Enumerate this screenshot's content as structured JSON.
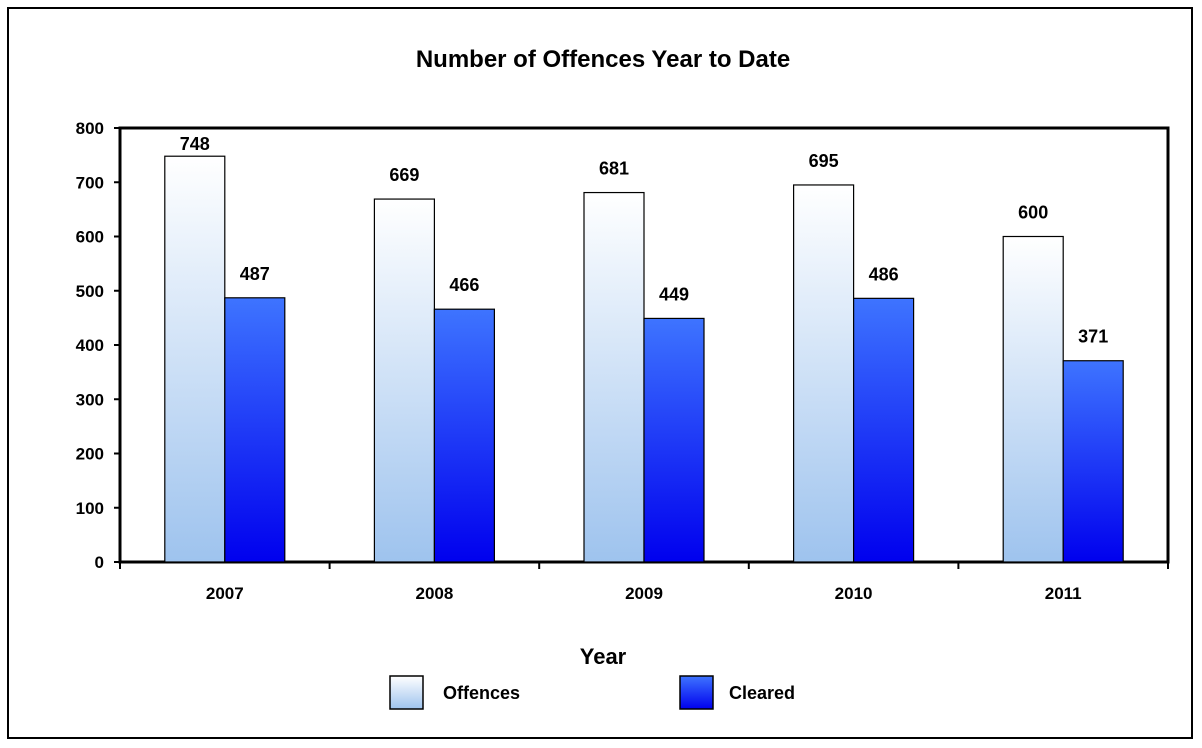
{
  "chart_data": {
    "type": "bar",
    "title": "Number of Offences Year to Date",
    "xlabel": "Year",
    "ylabel": "",
    "categories": [
      "2007",
      "2008",
      "2009",
      "2010",
      "2011"
    ],
    "series": [
      {
        "name": "Offences",
        "values": [
          748,
          669,
          681,
          695,
          600
        ]
      },
      {
        "name": "Cleared",
        "values": [
          487,
          466,
          449,
          486,
          371
        ]
      }
    ],
    "ylim": [
      0,
      800
    ],
    "yticks": [
      0,
      100,
      200,
      300,
      400,
      500,
      600,
      700,
      800
    ],
    "grid": false,
    "legend_position": "bottom",
    "colors": {
      "offences_top": "#ffffff",
      "offences_bottom": "#9ec3ee",
      "cleared_top": "#3e74ff",
      "cleared_bottom": "#0000ee"
    }
  }
}
